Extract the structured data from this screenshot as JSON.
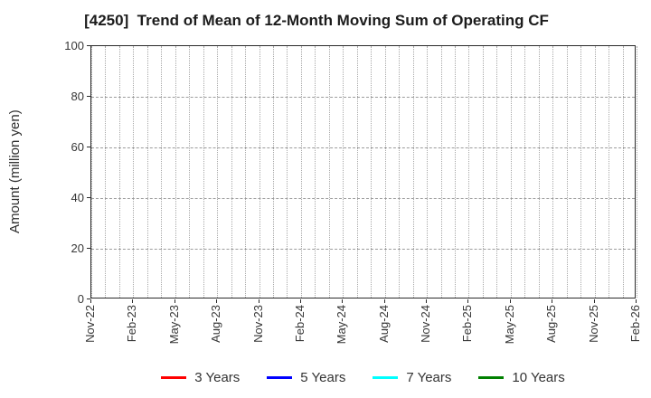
{
  "chart_data": {
    "type": "line",
    "title": "[4250]  Trend of Mean of 12-Month Moving Sum of Operating CF",
    "xlabel": "",
    "ylabel": "Amount (million yen)",
    "ylim": [
      0,
      100
    ],
    "y_ticks": [
      0,
      20,
      40,
      60,
      80,
      100
    ],
    "x_tick_labels": [
      "Nov-22",
      "Feb-23",
      "May-23",
      "Aug-23",
      "Nov-23",
      "Feb-24",
      "May-24",
      "Aug-24",
      "Nov-24",
      "Feb-25",
      "May-25",
      "Aug-25",
      "Nov-25",
      "Feb-26"
    ],
    "x_months_total": 39,
    "x_label_every_months": 3,
    "grid": true,
    "grid_vertical_style": "dotted",
    "grid_horizontal_style": "dashed",
    "legend_position": "bottom-center",
    "plot_is_empty": true,
    "series": [
      {
        "name": "3 Years",
        "color": "#ff0000",
        "values": []
      },
      {
        "name": "5 Years",
        "color": "#0000ff",
        "values": []
      },
      {
        "name": "7 Years",
        "color": "#00ffff",
        "values": []
      },
      {
        "name": "10 Years",
        "color": "#008000",
        "values": []
      }
    ]
  }
}
